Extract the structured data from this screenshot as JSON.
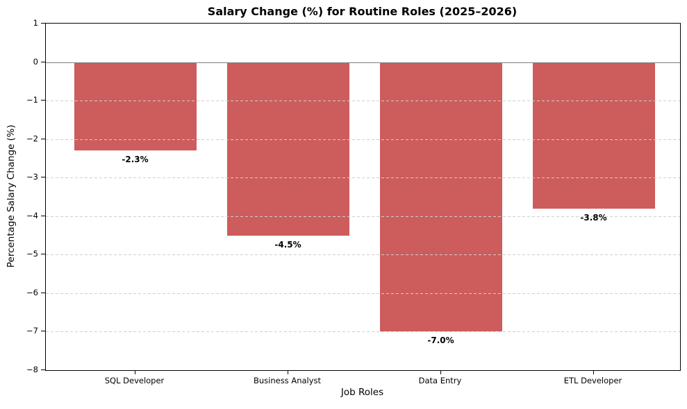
{
  "chart_data": {
    "type": "bar",
    "title": "Salary Change (%) for Routine Roles (2025–2026)",
    "xlabel": "Job Roles",
    "ylabel": "Percentage Salary Change (%)",
    "categories": [
      "SQL Developer",
      "Business Analyst",
      "Data Entry",
      "ETL Developer"
    ],
    "values": [
      -2.3,
      -4.5,
      -7.0,
      -3.8
    ],
    "bar_labels": [
      "-2.3%",
      "-4.5%",
      "-7.0%",
      "-3.8%"
    ],
    "ylim": [
      -8,
      1
    ],
    "yticks": [
      1,
      0,
      -1,
      -2,
      -3,
      -4,
      -5,
      -6,
      -7,
      -8
    ],
    "bar_color": "#CD5C5C",
    "gridline_color": "#cfcfcf",
    "gridline_style": "dashed",
    "zero_line_color": "#7f7f7f",
    "spine_color": "#000000",
    "grid": "horizontal",
    "legend": "none",
    "background_color": "#ffffff"
  }
}
